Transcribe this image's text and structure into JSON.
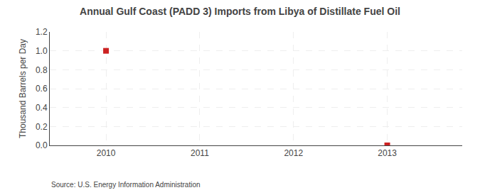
{
  "chart_data": {
    "type": "scatter",
    "title": "Annual Gulf Coast (PADD 3) Imports from Libya of Distillate Fuel Oil",
    "ylabel": "Thousand Barrels per Day",
    "annotations": [
      "Source: U.S. Energy Information Administration"
    ],
    "x": [
      2010,
      2013
    ],
    "values": [
      1.0,
      0.0
    ],
    "color": "#cc2222",
    "marker": "square",
    "xlim": [
      2009.4,
      2013.8
    ],
    "xticks": [
      2010,
      2011,
      2012,
      2013
    ],
    "ylim": [
      0.0,
      1.2
    ],
    "yticks": [
      {
        "value": 0.0,
        "label": "0.0"
      },
      0.2,
      0.4,
      0.6,
      0.8,
      {
        "value": 1.0,
        "label": "1.0"
      },
      1.2
    ],
    "grid": true
  }
}
